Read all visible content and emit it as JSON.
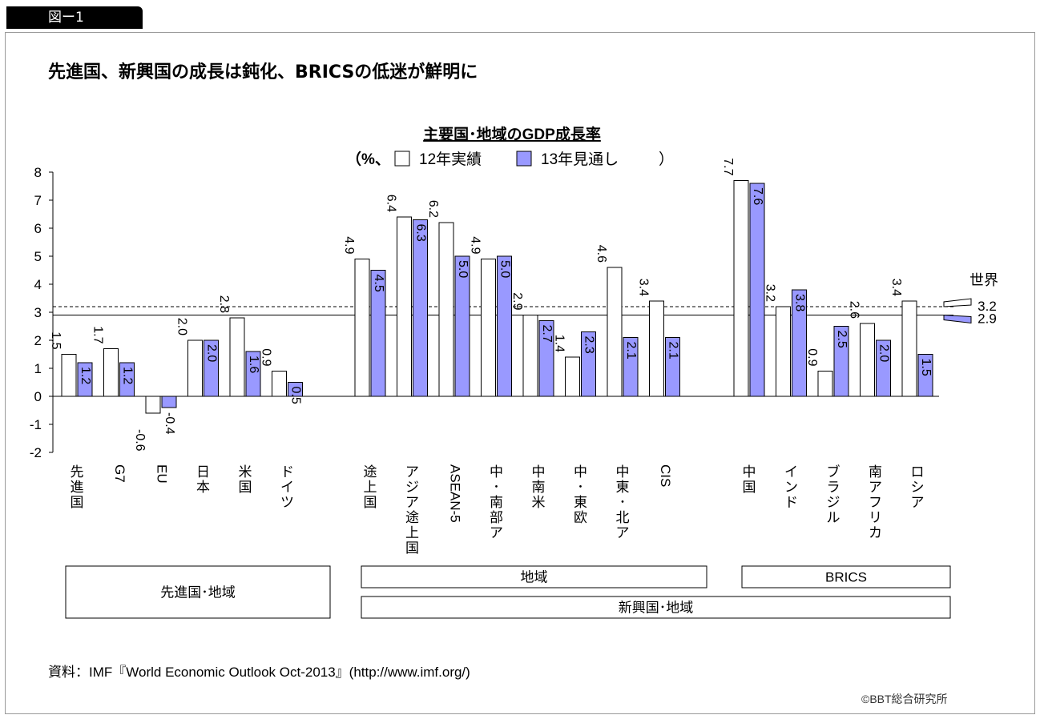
{
  "figure_label": "図ー1",
  "headline": "先進国、新興国の成長は鈍化、BRICSの低迷が鮮明に",
  "source": "資料：IMF『World Economic Outlook Oct-2013』(http://www.imf.org/)",
  "credit": "©BBT総合研究所",
  "chart_data": {
    "type": "bar",
    "title": "主要国･地域のGDP成長率",
    "subtitle_prefix": "（%、",
    "subtitle_suffix": "）",
    "ylim": [
      -2,
      8
    ],
    "yticks": [
      -2,
      -1,
      0,
      1,
      2,
      3,
      4,
      5,
      6,
      7,
      8
    ],
    "categories": [
      "先進国",
      "G7",
      "EU",
      "日本",
      "米国",
      "ドイツ",
      "途上国",
      "アジア途上国",
      "ASEAN-5",
      "中･南部ア",
      "中南米",
      "中･東欧",
      "中東･北ア",
      "CIS",
      "中国",
      "インド",
      "ブラジル",
      "南アフリカ",
      "ロシア"
    ],
    "series": [
      {
        "name": "12年実績",
        "color": "#ffffff",
        "values": [
          1.5,
          1.7,
          -0.6,
          2.0,
          2.8,
          0.9,
          4.9,
          6.4,
          6.2,
          4.9,
          2.9,
          1.4,
          4.6,
          3.4,
          7.7,
          3.2,
          0.9,
          2.6,
          3.4
        ]
      },
      {
        "name": "13年見通し",
        "color": "#9999ff",
        "values": [
          1.2,
          1.2,
          -0.4,
          2.0,
          1.6,
          0.5,
          4.5,
          6.3,
          5.0,
          5.0,
          2.7,
          2.3,
          2.1,
          2.1,
          7.6,
          3.8,
          2.5,
          2.0,
          1.5
        ]
      }
    ],
    "reference_lines": {
      "label": "世界",
      "lines": [
        {
          "name": "12年実績",
          "value": 2.9,
          "style": "solid"
        },
        {
          "name": "13年見通し",
          "value": 3.2,
          "style": "dashed"
        }
      ]
    },
    "groups": [
      {
        "label": "先進国･地域",
        "from": 0,
        "to": 5
      },
      {
        "label": "地域",
        "from": 6,
        "to": 13
      },
      {
        "label": "BRICS",
        "from": 14,
        "to": 18
      },
      {
        "label": "新興国･地域",
        "from": 6,
        "to": 18
      }
    ],
    "grid": false
  }
}
